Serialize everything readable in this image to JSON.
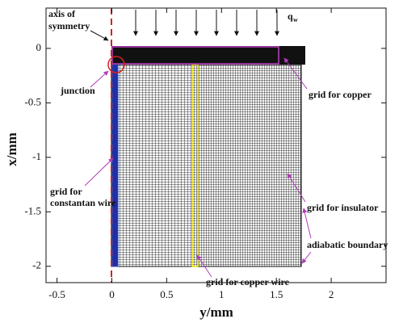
{
  "chart_data": {
    "type": "mesh",
    "x_label": "y/mm",
    "y_label": "x/mm",
    "xlim": [
      -0.6,
      2.5
    ],
    "xticks": [
      -0.5,
      0,
      0.5,
      1,
      1.5,
      2
    ],
    "ylim": [
      -2.15,
      0.37
    ],
    "yticks": [
      -2,
      -1.5,
      -1,
      -0.5,
      0
    ],
    "annotations": {
      "axis_of_symmetry": [
        "axis of",
        "symmetry"
      ],
      "heat_flux": [
        "q",
        "w"
      ],
      "junction": "junction",
      "grid_copper": "grid for copper",
      "grid_constantan": [
        "grid for",
        "constantan wire"
      ],
      "grid_insulator": "grid for insulator",
      "adiabatic_boundary": "adiabatic boundary",
      "grid_copper_wire": "grid for copper wire"
    }
  }
}
